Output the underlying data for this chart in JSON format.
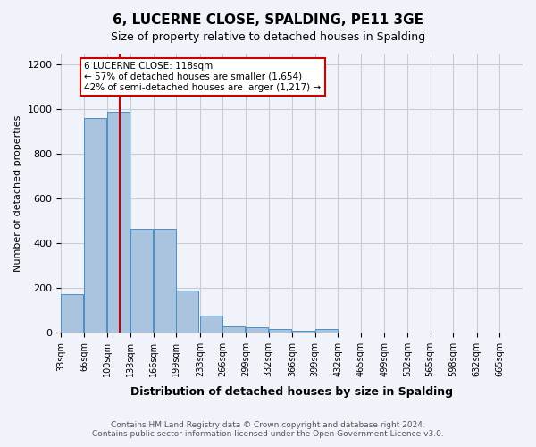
{
  "title": "6, LUCERNE CLOSE, SPALDING, PE11 3GE",
  "subtitle": "Size of property relative to detached houses in Spalding",
  "xlabel": "Distribution of detached houses by size in Spalding",
  "ylabel": "Number of detached properties",
  "annotation_title": "6 LUCERNE CLOSE: 118sqm",
  "annotation_line1": "← 57% of detached houses are smaller (1,654)",
  "annotation_line2": "42% of semi-detached houses are larger (1,217) →",
  "footer_line1": "Contains HM Land Registry data © Crown copyright and database right 2024.",
  "footer_line2": "Contains public sector information licensed under the Open Government Licence v3.0.",
  "property_size": 118,
  "bin_edges": [
    33,
    66,
    100,
    133,
    166,
    199,
    233,
    266,
    299,
    332,
    366,
    399,
    432,
    465,
    499,
    532,
    565,
    598,
    632,
    665,
    698
  ],
  "bin_counts": [
    170,
    963,
    989,
    463,
    463,
    187,
    75,
    28,
    22,
    14,
    9,
    14,
    0,
    0,
    0,
    0,
    0,
    0,
    0,
    0
  ],
  "bar_color": "#aac4e0",
  "bar_edge_color": "#4a90c4",
  "vline_color": "#cc0000",
  "vline_x": 118,
  "annotation_box_edge_color": "#cc0000",
  "annotation_box_face_color": "#ffffff",
  "grid_color": "#cccccc",
  "background_color": "#f0f4fa",
  "ylim": [
    0,
    1250
  ],
  "yticks": [
    0,
    200,
    400,
    600,
    800,
    1000,
    1200
  ]
}
